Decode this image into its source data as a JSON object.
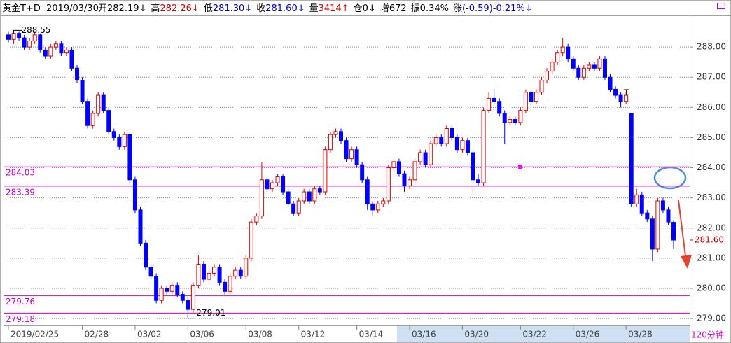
{
  "header": {
    "symbol": "黄金T+D",
    "date": "2019/03/30",
    "items": [
      {
        "label": "开",
        "value": "282.19↓",
        "color": "#000000"
      },
      {
        "label": "高",
        "value": "282.26↓",
        "color": "#d00000"
      },
      {
        "label": "低",
        "value": "281.30↓",
        "color": "#0000d0"
      },
      {
        "label": "收",
        "value": "281.60↓",
        "color": "#0000d0"
      },
      {
        "label": "量",
        "value": "3414↑",
        "color": "#d00000"
      },
      {
        "label": "仓",
        "value": "0↓",
        "color": "#000000"
      },
      {
        "label": "增",
        "value": "672",
        "color": "#000000"
      },
      {
        "label": "振",
        "value": "0.34%",
        "color": "#000000"
      },
      {
        "label": "涨",
        "value": "(-0.59)-0.21%↓",
        "color": "#0000d0"
      }
    ]
  },
  "chart_data": {
    "type": "candlestick",
    "categories": [
      "2019/02/25",
      null,
      null,
      null,
      null,
      null,
      null,
      null,
      null,
      null,
      null,
      null,
      null,
      null,
      "02/28",
      null,
      null,
      null,
      null,
      null,
      null,
      null,
      null,
      null,
      "03/02",
      null,
      null,
      null,
      null,
      null,
      null,
      null,
      null,
      null,
      "03/06",
      null,
      null,
      null,
      null,
      null,
      null,
      null,
      null,
      null,
      null,
      "03/08",
      null,
      null,
      null,
      null,
      null,
      null,
      null,
      null,
      null,
      "03/12",
      null,
      null,
      null,
      null,
      null,
      null,
      null,
      null,
      null,
      null,
      "03/14",
      null,
      null,
      null,
      null,
      null,
      null,
      null,
      null,
      null,
      "03/16",
      null,
      null,
      null,
      null,
      null,
      null,
      null,
      null,
      null,
      "03/20",
      null,
      null,
      null,
      null,
      null,
      null,
      null,
      null,
      null,
      null,
      "03/22",
      null,
      null,
      null,
      null,
      null,
      null,
      null,
      null,
      null,
      "03/26",
      null,
      null,
      null,
      null,
      null,
      null,
      null,
      null,
      null,
      "03/28",
      null,
      null,
      null,
      null,
      null,
      null,
      null,
      null,
      null
    ],
    "ohlc": [
      [
        288.4,
        288.5,
        288.15,
        288.25
      ],
      [
        288.25,
        288.55,
        288.1,
        288.45
      ],
      [
        288.45,
        288.5,
        288.2,
        288.3
      ],
      [
        288.3,
        288.4,
        287.9,
        288.0
      ],
      [
        288.0,
        288.3,
        287.9,
        288.2
      ],
      [
        288.2,
        288.5,
        288.1,
        288.4
      ],
      [
        288.4,
        288.45,
        287.8,
        287.9
      ],
      [
        287.9,
        288.0,
        287.6,
        287.7
      ],
      [
        287.7,
        288.1,
        287.6,
        288.0
      ],
      [
        288.0,
        288.2,
        287.9,
        288.1
      ],
      [
        288.1,
        288.2,
        287.7,
        287.8
      ],
      [
        287.8,
        288.0,
        287.7,
        287.9
      ],
      [
        287.9,
        288.0,
        287.2,
        287.3
      ],
      [
        287.3,
        287.4,
        286.8,
        286.9
      ],
      [
        286.9,
        287.0,
        286.1,
        286.2
      ],
      [
        286.2,
        286.3,
        285.3,
        285.4
      ],
      [
        285.4,
        285.9,
        285.3,
        285.8
      ],
      [
        285.8,
        286.5,
        285.7,
        286.4
      ],
      [
        286.4,
        286.5,
        285.8,
        285.9
      ],
      [
        285.9,
        286.0,
        285.1,
        285.2
      ],
      [
        285.2,
        285.3,
        284.9,
        285.0
      ],
      [
        285.0,
        285.1,
        284.6,
        284.7
      ],
      [
        284.7,
        285.2,
        284.6,
        285.1
      ],
      [
        285.1,
        285.2,
        283.5,
        283.6
      ],
      [
        283.6,
        283.7,
        282.5,
        282.6
      ],
      [
        282.6,
        282.7,
        281.4,
        281.5
      ],
      [
        281.5,
        281.6,
        280.6,
        280.7
      ],
      [
        280.7,
        280.8,
        280.3,
        280.4
      ],
      [
        280.4,
        280.5,
        279.5,
        279.6
      ],
      [
        279.6,
        280.1,
        279.5,
        280.0
      ],
      [
        280.0,
        280.1,
        279.8,
        279.9
      ],
      [
        279.9,
        280.2,
        279.8,
        280.1
      ],
      [
        280.1,
        280.2,
        279.7,
        279.8
      ],
      [
        279.8,
        279.9,
        279.5,
        279.6
      ],
      [
        279.6,
        279.7,
        279.01,
        279.3
      ],
      [
        279.3,
        280.2,
        279.2,
        280.1
      ],
      [
        280.1,
        281.1,
        280.0,
        280.8
      ],
      [
        280.8,
        280.9,
        280.2,
        280.3
      ],
      [
        280.3,
        280.6,
        280.2,
        280.5
      ],
      [
        280.5,
        280.8,
        280.4,
        280.7
      ],
      [
        280.7,
        280.8,
        280.1,
        280.2
      ],
      [
        280.2,
        280.3,
        279.8,
        279.9
      ],
      [
        279.9,
        280.5,
        279.8,
        280.4
      ],
      [
        280.4,
        280.7,
        280.3,
        280.6
      ],
      [
        280.6,
        280.7,
        280.3,
        280.4
      ],
      [
        280.4,
        281.1,
        280.3,
        281.0
      ],
      [
        281.0,
        282.3,
        280.9,
        282.2
      ],
      [
        282.2,
        282.5,
        282.1,
        282.4
      ],
      [
        282.4,
        284.2,
        282.3,
        283.6
      ],
      [
        283.6,
        283.7,
        283.2,
        283.3
      ],
      [
        283.3,
        283.6,
        283.2,
        283.5
      ],
      [
        283.5,
        283.8,
        283.4,
        283.7
      ],
      [
        283.7,
        283.8,
        283.1,
        283.2
      ],
      [
        283.2,
        283.3,
        282.7,
        282.8
      ],
      [
        282.8,
        282.9,
        282.4,
        282.5
      ],
      [
        282.5,
        283.0,
        282.4,
        282.9
      ],
      [
        282.9,
        283.3,
        282.8,
        283.2
      ],
      [
        283.2,
        283.3,
        282.8,
        282.9
      ],
      [
        282.9,
        283.4,
        282.8,
        283.3
      ],
      [
        283.3,
        283.4,
        283.1,
        283.2
      ],
      [
        283.2,
        284.7,
        283.1,
        284.6
      ],
      [
        284.6,
        285.2,
        284.5,
        285.1
      ],
      [
        285.1,
        285.3,
        285.0,
        285.2
      ],
      [
        285.2,
        285.3,
        284.8,
        284.9
      ],
      [
        284.9,
        285.0,
        284.2,
        284.3
      ],
      [
        284.3,
        284.7,
        284.2,
        284.6
      ],
      [
        284.6,
        284.7,
        284.0,
        284.1
      ],
      [
        284.1,
        284.2,
        283.5,
        283.6
      ],
      [
        283.6,
        283.7,
        282.6,
        282.8
      ],
      [
        282.8,
        282.9,
        282.4,
        282.6
      ],
      [
        282.6,
        282.9,
        282.5,
        282.8
      ],
      [
        282.8,
        283.0,
        282.7,
        282.9
      ],
      [
        282.9,
        284.1,
        282.8,
        284.0
      ],
      [
        284.0,
        284.3,
        283.9,
        284.2
      ],
      [
        284.2,
        284.3,
        283.7,
        283.8
      ],
      [
        283.8,
        283.9,
        283.2,
        283.4
      ],
      [
        283.4,
        283.7,
        283.3,
        283.6
      ],
      [
        283.6,
        284.3,
        283.5,
        284.2
      ],
      [
        284.2,
        284.6,
        284.1,
        284.5
      ],
      [
        284.5,
        284.6,
        284.0,
        284.1
      ],
      [
        284.1,
        284.9,
        284.0,
        284.8
      ],
      [
        284.8,
        285.1,
        284.7,
        285.0
      ],
      [
        285.0,
        285.1,
        284.7,
        284.8
      ],
      [
        284.8,
        285.4,
        284.7,
        285.3
      ],
      [
        285.3,
        285.4,
        284.9,
        285.0
      ],
      [
        285.0,
        285.1,
        284.5,
        284.6
      ],
      [
        284.6,
        285.0,
        284.5,
        284.9
      ],
      [
        284.9,
        285.0,
        284.4,
        284.5
      ],
      [
        284.5,
        284.6,
        283.1,
        283.6
      ],
      [
        283.6,
        283.8,
        283.4,
        283.5
      ],
      [
        283.5,
        286.0,
        283.4,
        285.9
      ],
      [
        285.9,
        286.5,
        285.8,
        286.3
      ],
      [
        286.3,
        286.6,
        286.1,
        286.2
      ],
      [
        286.2,
        286.3,
        285.7,
        285.8
      ],
      [
        285.8,
        285.9,
        284.8,
        285.5
      ],
      [
        285.5,
        285.7,
        285.4,
        285.6
      ],
      [
        285.6,
        285.7,
        285.4,
        285.5
      ],
      [
        285.5,
        286.0,
        285.4,
        285.9
      ],
      [
        285.9,
        286.6,
        285.8,
        286.5
      ],
      [
        286.5,
        286.6,
        286.0,
        286.2
      ],
      [
        286.2,
        286.6,
        286.1,
        286.5
      ],
      [
        286.5,
        287.0,
        286.4,
        286.9
      ],
      [
        286.9,
        287.3,
        286.8,
        287.2
      ],
      [
        287.2,
        287.6,
        287.1,
        287.5
      ],
      [
        287.5,
        287.9,
        287.4,
        287.8
      ],
      [
        287.8,
        288.3,
        287.7,
        288.0
      ],
      [
        288.0,
        288.1,
        287.5,
        287.6
      ],
      [
        287.6,
        287.7,
        287.2,
        287.3
      ],
      [
        287.3,
        287.4,
        286.9,
        287.0
      ],
      [
        287.0,
        287.4,
        286.9,
        287.3
      ],
      [
        287.3,
        287.5,
        287.2,
        287.4
      ],
      [
        287.4,
        287.5,
        287.2,
        287.3
      ],
      [
        287.3,
        287.7,
        287.2,
        287.6
      ],
      [
        287.6,
        287.7,
        286.9,
        287.0
      ],
      [
        287.0,
        287.1,
        286.5,
        286.6
      ],
      [
        286.6,
        286.7,
        286.3,
        286.4
      ],
      [
        286.4,
        286.5,
        286.0,
        286.2
      ],
      [
        286.2,
        286.5,
        286.1,
        286.4
      ],
      [
        285.8,
        285.8,
        282.7,
        282.8
      ],
      [
        282.8,
        283.3,
        282.7,
        283.1
      ],
      [
        283.1,
        283.2,
        282.4,
        282.5
      ],
      [
        282.5,
        282.6,
        282.2,
        282.3
      ],
      [
        282.3,
        282.4,
        280.9,
        281.3
      ],
      [
        281.3,
        283.0,
        281.2,
        282.9
      ],
      [
        282.9,
        283.0,
        282.5,
        282.6
      ],
      [
        282.6,
        282.7,
        282.1,
        282.2
      ],
      [
        282.19,
        282.26,
        281.3,
        281.6
      ]
    ],
    "up_color": "#e00000",
    "down_color": "#0000ff",
    "ylim": [
      278.77,
      289.0
    ],
    "yticks": [
      {
        "value": 279,
        "label": "279.00"
      },
      {
        "value": 280,
        "label": "280.00"
      },
      {
        "value": 281,
        "label": "281.00"
      },
      {
        "value": 282,
        "label": "282.00"
      },
      {
        "value": 283,
        "label": "283.00"
      },
      {
        "value": 284,
        "label": "284.00"
      },
      {
        "value": 285,
        "label": "285.00"
      },
      {
        "value": 286,
        "label": "286.00"
      },
      {
        "value": 287,
        "label": "287.00"
      },
      {
        "value": 288,
        "label": "288.00"
      }
    ],
    "grid": true,
    "reference_lines": [
      {
        "value": 284.03,
        "color": "#cc00cc"
      },
      {
        "value": 283.39,
        "color": "#cc00cc"
      },
      {
        "value": 279.76,
        "color": "#cc00cc"
      },
      {
        "value": 279.18,
        "color": "#cc00cc"
      }
    ],
    "last_price": {
      "value": 281.6,
      "label": "281.60",
      "color": "#d00000"
    },
    "annotations": [
      "T"
    ],
    "period": "120分钟"
  }
}
